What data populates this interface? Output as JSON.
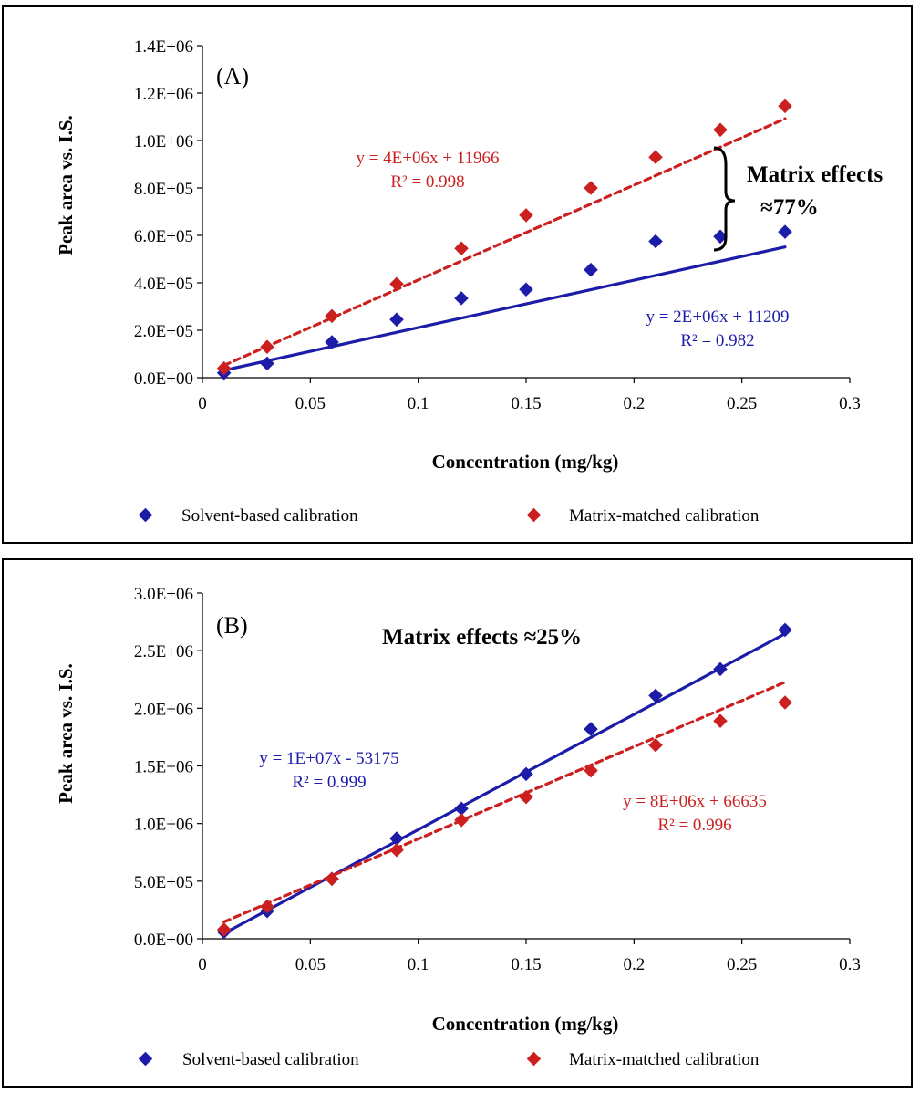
{
  "colors": {
    "solvent": "#1c1ca8",
    "matrix": "#cc2020",
    "axis": "#000000"
  },
  "chart_data": [
    {
      "type": "scatter",
      "panel_label": "(A)",
      "xlabel": "Concentration (mg/kg)",
      "ylabel": "Peak area vs. I.S.",
      "xlim": [
        0,
        0.3
      ],
      "ylim": [
        0,
        1400000
      ],
      "x_ticks": [
        "0",
        "0.05",
        "0.1",
        "0.15",
        "0.2",
        "0.25",
        "0.3"
      ],
      "y_ticks": [
        "0.0E+00",
        "2.0E+05",
        "4.0E+05",
        "6.0E+05",
        "8.0E+05",
        "1.0E+06",
        "1.2E+06",
        "1.4E+06"
      ],
      "grid": false,
      "legend_position": "bottom",
      "series": [
        {
          "name": "Solvent-based calibration",
          "x": [
            0.01,
            0.03,
            0.06,
            0.09,
            0.12,
            0.15,
            0.18,
            0.21,
            0.24,
            0.27
          ],
          "y": [
            20000,
            60000,
            150000,
            245000,
            335000,
            372000,
            455000,
            575000,
            595000,
            615000
          ],
          "trendline": {
            "slope": 2000000,
            "intercept": 11209,
            "style": "solid"
          },
          "equation": "y = 2E+06x + 11209",
          "r2": "R² = 0.982"
        },
        {
          "name": "Matrix-matched calibration",
          "x": [
            0.01,
            0.03,
            0.06,
            0.09,
            0.12,
            0.15,
            0.18,
            0.21,
            0.24,
            0.27
          ],
          "y": [
            40000,
            130000,
            260000,
            395000,
            545000,
            685000,
            800000,
            930000,
            1045000,
            1145000
          ],
          "trendline": {
            "slope": 4000000,
            "intercept": 11966,
            "style": "dashed"
          },
          "equation": "y = 4E+06x + 11966",
          "r2": "R² = 0.998"
        }
      ],
      "annotation": {
        "line1": "Matrix effects",
        "line2": "≈77%"
      }
    },
    {
      "type": "scatter",
      "panel_label": "(B)",
      "xlabel": "Concentration (mg/kg)",
      "ylabel": "Peak area vs. I.S.",
      "xlim": [
        0,
        0.3
      ],
      "ylim": [
        0,
        3000000
      ],
      "x_ticks": [
        "0",
        "0.05",
        "0.1",
        "0.15",
        "0.2",
        "0.25",
        "0.3"
      ],
      "y_ticks": [
        "0.0E+00",
        "5.0E+05",
        "1.0E+06",
        "1.5E+06",
        "2.0E+06",
        "2.5E+06",
        "3.0E+06"
      ],
      "grid": false,
      "legend_position": "bottom",
      "series": [
        {
          "name": "Solvent-based calibration",
          "x": [
            0.01,
            0.03,
            0.06,
            0.09,
            0.12,
            0.15,
            0.18,
            0.21,
            0.24,
            0.27
          ],
          "y": [
            60000,
            240000,
            520000,
            870000,
            1130000,
            1430000,
            1820000,
            2110000,
            2340000,
            2680000
          ],
          "trendline": {
            "slope": 10000000,
            "intercept": -53175,
            "style": "solid"
          },
          "equation": "y = 1E+07x - 53175",
          "r2": "R² = 0.999"
        },
        {
          "name": "Matrix-matched calibration",
          "x": [
            0.01,
            0.03,
            0.06,
            0.09,
            0.12,
            0.15,
            0.18,
            0.21,
            0.24,
            0.27
          ],
          "y": [
            80000,
            280000,
            520000,
            770000,
            1030000,
            1230000,
            1460000,
            1680000,
            1890000,
            2050000
          ],
          "trendline": {
            "slope": 8000000,
            "intercept": 66635,
            "style": "dashed"
          },
          "equation": "y = 8E+06x + 66635",
          "r2": "R² = 0.996"
        }
      ],
      "annotation": {
        "line1": "Matrix effects ≈25%"
      }
    }
  ]
}
